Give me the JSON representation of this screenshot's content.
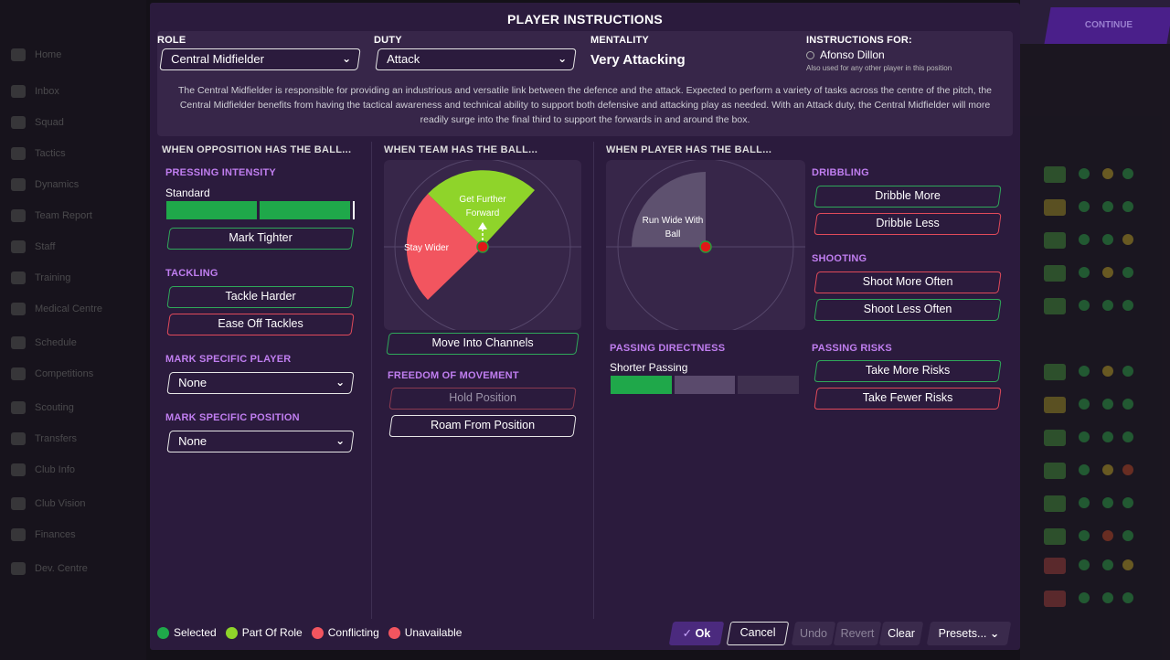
{
  "background_nav": [
    "Home",
    "Inbox",
    "Squad",
    "Tactics",
    "Dynamics",
    "Team Report",
    "Staff",
    "Training",
    "Medical Centre",
    "Schedule",
    "Competitions",
    "Scouting",
    "Transfers",
    "Club Info",
    "Club Vision",
    "Finances",
    "Dev. Centre"
  ],
  "background_continue": "CONTINUE",
  "dialog": {
    "title": "PLAYER INSTRUCTIONS",
    "role": {
      "label": "ROLE",
      "value": "Central Midfielder"
    },
    "duty": {
      "label": "DUTY",
      "value": "Attack"
    },
    "mentality": {
      "label": "MENTALITY",
      "value": "Very Attacking"
    },
    "instructions_for": {
      "label": "INSTRUCTIONS FOR:",
      "player": "Afonso Dillon",
      "note": "Also used for any other player in this position"
    },
    "description": "The Central Midfielder is responsible for providing an industrious and versatile link between the defence and the attack. Expected to perform a variety of tasks across the centre of the pitch, the Central Midfielder benefits from having the tactical awareness and technical ability to support both defensive and attacking play as needed. With an Attack duty, the Central Midfielder will more readily surge into the final third to support the forwards in and around the box."
  },
  "col1": {
    "header": "WHEN OPPOSITION HAS THE BALL...",
    "pressing": {
      "label": "PRESSING INTENSITY",
      "value": "Standard",
      "level_segments": 2,
      "total_segments": 3
    },
    "mark_tighter": "Mark Tighter",
    "tackling": {
      "label": "TACKLING",
      "harder": "Tackle Harder",
      "ease_off": "Ease Off Tackles"
    },
    "mark_player": {
      "label": "MARK SPECIFIC PLAYER",
      "value": "None"
    },
    "mark_position": {
      "label": "MARK SPECIFIC POSITION",
      "value": "None"
    }
  },
  "col2": {
    "header": "WHEN TEAM HAS THE BALL...",
    "zone_forward": "Get Further Forward",
    "zone_wider": "Stay Wider",
    "channels": "Move Into Channels",
    "freedom": {
      "label": "FREEDOM OF MOVEMENT",
      "hold": "Hold Position",
      "roam": "Roam From Position"
    }
  },
  "col3": {
    "header": "WHEN PLAYER HAS THE BALL...",
    "zone_wide": "Run Wide With Ball",
    "passing_directness": {
      "label": "PASSING DIRECTNESS",
      "value": "Shorter Passing",
      "level_segments": 1,
      "total_segments": 3
    },
    "dribbling": {
      "label": "DRIBBLING",
      "more": "Dribble More",
      "less": "Dribble Less"
    },
    "shooting": {
      "label": "SHOOTING",
      "more": "Shoot More Often",
      "less": "Shoot Less Often"
    },
    "passing_risks": {
      "label": "PASSING RISKS",
      "more": "Take More Risks",
      "fewer": "Take Fewer Risks"
    }
  },
  "legend": [
    {
      "label": "Selected",
      "color": "#1fa84a"
    },
    {
      "label": "Part Of Role",
      "color": "#8fd42a"
    },
    {
      "label": "Conflicting",
      "color": "#f2555f"
    },
    {
      "label": "Unavailable",
      "color": "#f2555f"
    }
  ],
  "footer": {
    "ok": "Ok",
    "cancel": "Cancel",
    "undo": "Undo",
    "revert": "Revert",
    "clear": "Clear",
    "presets": "Presets..."
  },
  "colors": {
    "selected": "#1fa84a",
    "part_of_role": "#8fd42a",
    "conflicting": "#f2555f",
    "accent_purple": "#c07ef0",
    "dialog_bg": "#2b1b3d"
  }
}
